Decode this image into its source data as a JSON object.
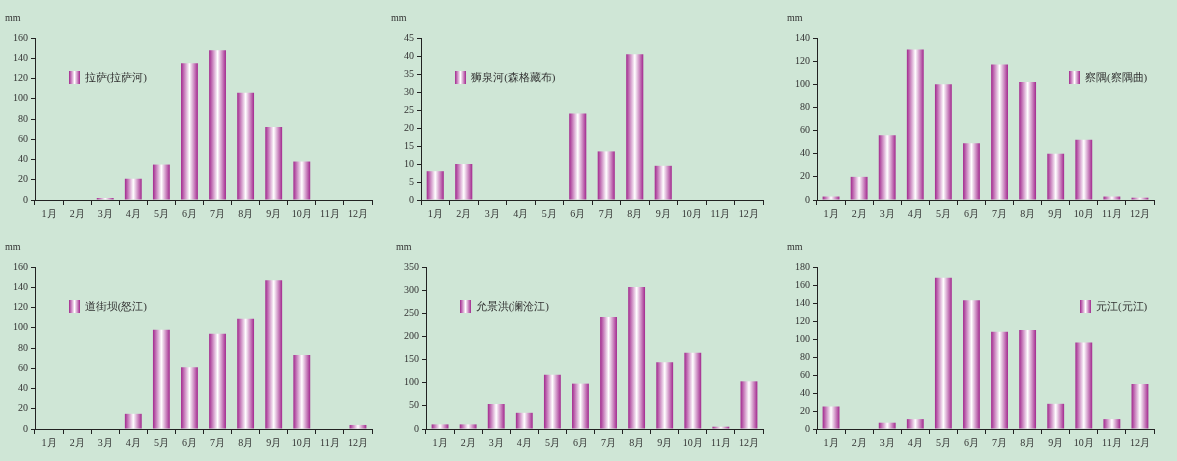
{
  "chart_data": [
    {
      "type": "bar",
      "categories": [
        "1月",
        "2月",
        "3月",
        "4月",
        "5月",
        "6月",
        "7月",
        "8月",
        "9月",
        "10月",
        "11月",
        "12月"
      ],
      "ylabel": "mm",
      "ylim": [
        0,
        160
      ],
      "yticks": [
        0,
        20,
        40,
        60,
        80,
        100,
        120,
        140,
        160
      ],
      "grid": false,
      "legend": "top left",
      "series": [
        {
          "name": "拉萨(拉萨河)",
          "color": "#a2288e",
          "values": [
            0,
            0,
            2,
            21,
            35,
            135,
            148,
            106,
            72,
            38,
            0,
            0
          ]
        }
      ]
    },
    {
      "type": "bar",
      "categories": [
        "1月",
        "2月",
        "3月",
        "4月",
        "5月",
        "6月",
        "7月",
        "8月",
        "9月",
        "10月",
        "11月",
        "12月"
      ],
      "ylabel": "mm",
      "ylim": [
        0,
        45
      ],
      "yticks": [
        0,
        5,
        10,
        15,
        20,
        25,
        30,
        35,
        40,
        45
      ],
      "grid": false,
      "legend": "top left",
      "series": [
        {
          "name": "狮泉河(森格藏布)",
          "color": "#a2288e",
          "values": [
            8,
            10,
            0,
            0,
            0,
            24,
            13.5,
            40.5,
            9.5,
            0,
            0,
            0
          ]
        }
      ]
    },
    {
      "type": "bar",
      "categories": [
        "1月",
        "2月",
        "3月",
        "4月",
        "5月",
        "6月",
        "7月",
        "8月",
        "9月",
        "10月",
        "11月",
        "12月"
      ],
      "ylabel": "mm",
      "ylim": [
        0,
        140
      ],
      "yticks": [
        0,
        20,
        40,
        60,
        80,
        100,
        120,
        140
      ],
      "grid": false,
      "legend": "top right",
      "series": [
        {
          "name": "察隅(察隅曲)",
          "color": "#a2288e",
          "values": [
            3,
            20,
            56,
            130,
            100,
            49,
            117,
            102,
            40,
            52,
            3,
            2
          ]
        }
      ]
    },
    {
      "type": "bar",
      "categories": [
        "1月",
        "2月",
        "3月",
        "4月",
        "5月",
        "6月",
        "7月",
        "8月",
        "9月",
        "10月",
        "11月",
        "12月"
      ],
      "ylabel": "mm",
      "ylim": [
        0,
        160
      ],
      "yticks": [
        0,
        20,
        40,
        60,
        80,
        100,
        120,
        140,
        160
      ],
      "grid": false,
      "legend": "top left",
      "series": [
        {
          "name": "道街坝(怒江)",
          "color": "#a2288e",
          "values": [
            0,
            0,
            0,
            15,
            98,
            61,
            94,
            109,
            147,
            73,
            0,
            4
          ]
        }
      ]
    },
    {
      "type": "bar",
      "categories": [
        "1月",
        "2月",
        "3月",
        "4月",
        "5月",
        "6月",
        "7月",
        "8月",
        "9月",
        "10月",
        "11月",
        "12月"
      ],
      "ylabel": "mm",
      "ylim": [
        0,
        350
      ],
      "yticks": [
        0,
        50,
        100,
        150,
        200,
        250,
        300,
        350
      ],
      "grid": false,
      "legend": "top left",
      "series": [
        {
          "name": "允景洪(澜沧江)",
          "color": "#a2288e",
          "values": [
            10,
            10,
            54,
            35,
            117,
            98,
            242,
            307,
            144,
            165,
            5,
            103
          ]
        }
      ]
    },
    {
      "type": "bar",
      "categories": [
        "1月",
        "2月",
        "3月",
        "4月",
        "5月",
        "6月",
        "7月",
        "8月",
        "9月",
        "10月",
        "11月",
        "12月"
      ],
      "ylabel": "mm",
      "ylim": [
        0,
        180
      ],
      "yticks": [
        0,
        20,
        40,
        60,
        80,
        100,
        120,
        140,
        160,
        180
      ],
      "grid": false,
      "legend": "top right",
      "series": [
        {
          "name": "元江(元江)",
          "color": "#a2288e",
          "values": [
            25,
            0,
            7,
            11,
            168,
            143,
            108,
            110,
            28,
            96,
            11,
            50
          ]
        }
      ]
    }
  ]
}
